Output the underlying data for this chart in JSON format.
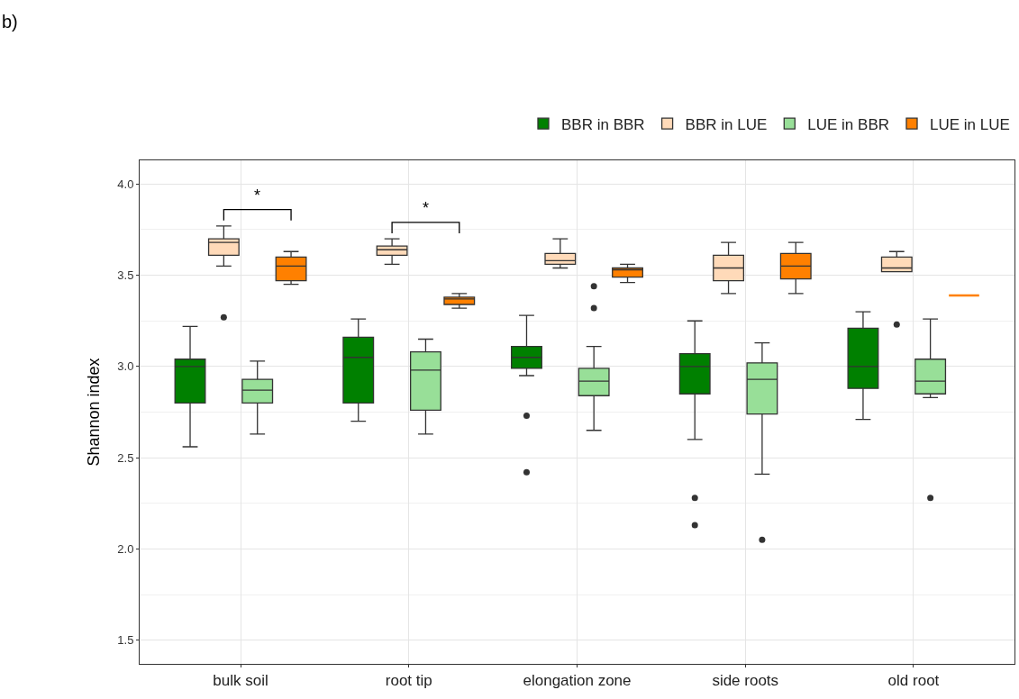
{
  "chart_data": {
    "type": "box",
    "ylabel": "Shannon index",
    "categories": [
      "bulk soil",
      "root tip",
      "elongation zone",
      "side roots",
      "old root"
    ],
    "series": [
      {
        "name": "BBR in BBR",
        "color": "#008000",
        "boxes": [
          {
            "low": 2.56,
            "q1": 2.8,
            "median": 3.0,
            "q3": 3.04,
            "high": 3.22
          },
          {
            "low": 2.7,
            "q1": 2.8,
            "median": 3.05,
            "q3": 3.16,
            "high": 3.26
          },
          {
            "low": 2.95,
            "q1": 2.99,
            "median": 3.05,
            "q3": 3.11,
            "high": 3.28,
            "outliers": [
              2.73,
              2.42
            ]
          },
          {
            "low": 2.6,
            "q1": 2.85,
            "median": 3.0,
            "q3": 3.07,
            "high": 3.25,
            "outliers": [
              2.28,
              2.13
            ]
          },
          {
            "low": 2.71,
            "q1": 2.88,
            "median": 3.0,
            "q3": 3.21,
            "high": 3.3
          }
        ]
      },
      {
        "name": "BBR in LUE",
        "color": "#ffdab9",
        "boxes": [
          {
            "low": 3.55,
            "q1": 3.61,
            "median": 3.68,
            "q3": 3.7,
            "high": 3.77,
            "outliers": [
              3.27
            ]
          },
          {
            "low": 3.56,
            "q1": 3.61,
            "median": 3.64,
            "q3": 3.66,
            "high": 3.7
          },
          {
            "low": 3.54,
            "q1": 3.56,
            "median": 3.58,
            "q3": 3.62,
            "high": 3.7
          },
          {
            "low": 3.4,
            "q1": 3.47,
            "median": 3.54,
            "q3": 3.61,
            "high": 3.68
          },
          {
            "low": 3.52,
            "q1": 3.52,
            "median": 3.54,
            "q3": 3.6,
            "high": 3.63,
            "outliers": [
              3.23
            ]
          }
        ]
      },
      {
        "name": "LUE in BBR",
        "color": "#98df98",
        "boxes": [
          {
            "low": 2.63,
            "q1": 2.8,
            "median": 2.87,
            "q3": 2.93,
            "high": 3.03
          },
          {
            "low": 2.63,
            "q1": 2.76,
            "median": 2.98,
            "q3": 3.08,
            "high": 3.15
          },
          {
            "low": 2.65,
            "q1": 2.84,
            "median": 2.92,
            "q3": 2.99,
            "high": 3.11,
            "outliers": [
              3.44,
              3.32
            ]
          },
          {
            "low": 2.41,
            "q1": 2.74,
            "median": 2.93,
            "q3": 3.02,
            "high": 3.13,
            "outliers": [
              2.05
            ]
          },
          {
            "low": 2.83,
            "q1": 2.85,
            "median": 2.92,
            "q3": 3.04,
            "high": 3.26,
            "outliers": [
              2.28
            ]
          }
        ]
      },
      {
        "name": "LUE in LUE",
        "color": "#ff8000",
        "boxes": [
          {
            "low": 3.45,
            "q1": 3.47,
            "median": 3.55,
            "q3": 3.6,
            "high": 3.63
          },
          {
            "low": 3.32,
            "q1": 3.34,
            "median": 3.37,
            "q3": 3.38,
            "high": 3.4
          },
          {
            "low": 3.46,
            "q1": 3.49,
            "median": 3.53,
            "q3": 3.54,
            "high": 3.56
          },
          {
            "low": 3.4,
            "q1": 3.48,
            "median": 3.55,
            "q3": 3.62,
            "high": 3.68
          },
          {
            "low": 3.39,
            "q1": 3.39,
            "median": 3.39,
            "q3": 3.39,
            "high": 3.39
          }
        ]
      }
    ],
    "ylim": [
      1.37,
      4.13
    ],
    "yticks": [
      {
        "value": 1.5,
        "label": "1.5"
      },
      {
        "value": 2.0,
        "label": "2.0"
      },
      {
        "value": 2.5,
        "label": "2.5"
      },
      {
        "value": 3.0,
        "label": "3.0"
      },
      {
        "value": 3.5,
        "label": "3.5"
      },
      {
        "value": 4.0,
        "label": "4.0"
      }
    ],
    "grid": true,
    "legend": "top right",
    "annotations": [
      "b)",
      "*",
      "*"
    ]
  }
}
